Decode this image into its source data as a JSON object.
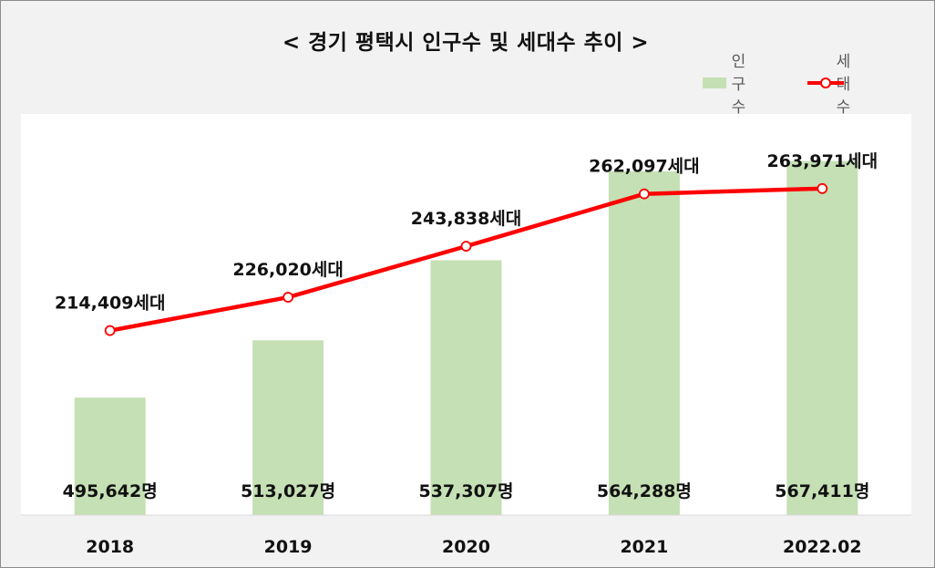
{
  "chart_data": {
    "type": "bar",
    "title": "< 경기 평택시 인구수 및 세대수 추이 >",
    "categories": [
      "2018",
      "2019",
      "2020",
      "2021",
      "2022.02"
    ],
    "series": [
      {
        "name": "인구수",
        "kind": "bar",
        "color": "#c5e0b4",
        "values": [
          495642,
          513027,
          537307,
          564288,
          567411
        ],
        "labels": [
          "495,642명",
          "513,027명",
          "537,307명",
          "564,288명",
          "567,411명"
        ]
      },
      {
        "name": "세대수",
        "kind": "line",
        "color": "#ff0000",
        "values": [
          214409,
          226020,
          243838,
          262097,
          263971
        ],
        "labels": [
          "214,409세대",
          "226,020세대",
          "243,838세대",
          "262,097세대",
          "263,971세대"
        ]
      }
    ],
    "legend_position": "top-right",
    "grid": false
  }
}
